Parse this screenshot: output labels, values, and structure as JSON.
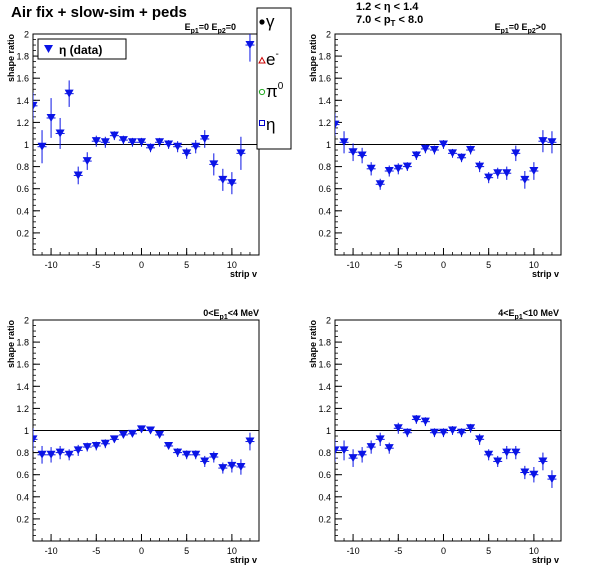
{
  "header": {
    "title": "Air fix + slow-sim + peds",
    "eta_range": "1.2 < η < 1.4",
    "pt_prefix": "7.0 < p",
    "pt_sub": "T",
    "pt_suffix": " < 8.0"
  },
  "legend": {
    "entry": "η (data)",
    "particles": [
      "γ",
      "e",
      "-",
      "π",
      "0",
      "η"
    ],
    "colors": {
      "gamma": "#000000",
      "electron": "#cc0000",
      "pi0": "#22aa22",
      "eta": "#0000cc"
    }
  },
  "colors": {
    "marker": "#0a14e6",
    "axis": "#000000",
    "reference_line": "#000000"
  },
  "chart_data": [
    {
      "type": "scatter",
      "panel_label": "E_p1=0 E_p2=0",
      "label_parts": [
        "E",
        "p1",
        "=0 E",
        "p2",
        "=0"
      ],
      "xlabel": "strip v",
      "ylabel": "shape ratio",
      "xlim": [
        -12,
        13
      ],
      "ylim": [
        0,
        2
      ],
      "x_ticks": [
        -10,
        -5,
        0,
        5,
        10
      ],
      "y_ticks": [
        0.2,
        0.4,
        0.6,
        0.8,
        1,
        1.2,
        1.4,
        1.6,
        1.8,
        2
      ],
      "reference_line": 1,
      "series": [
        {
          "name": "η (data)",
          "x": [
            -12,
            -11,
            -10,
            -9,
            -8,
            -7,
            -6,
            -5,
            -4,
            -3,
            -2,
            -1,
            0,
            1,
            2,
            3,
            4,
            5,
            6,
            7,
            8,
            9,
            10,
            11,
            12
          ],
          "y": [
            1.35,
            0.98,
            1.24,
            1.1,
            1.46,
            0.72,
            0.85,
            1.03,
            1.02,
            1.08,
            1.04,
            1.02,
            1.02,
            0.97,
            1.02,
            1.0,
            0.98,
            0.92,
            0.98,
            1.05,
            0.82,
            0.68,
            0.65,
            0.92,
            1.9
          ],
          "yerr": [
            0.12,
            0.15,
            0.18,
            0.14,
            0.12,
            0.08,
            0.08,
            0.05,
            0.05,
            0.04,
            0.04,
            0.04,
            0.04,
            0.04,
            0.04,
            0.04,
            0.05,
            0.05,
            0.06,
            0.08,
            0.1,
            0.1,
            0.1,
            0.15,
            0.15
          ]
        }
      ]
    },
    {
      "type": "scatter",
      "panel_label": "E_p1=0 E_p2>0",
      "label_parts": [
        "E",
        "p1",
        "=0 E",
        "p2",
        ">0"
      ],
      "xlabel": "strip v",
      "ylabel": "shape ratio",
      "xlim": [
        -12,
        13
      ],
      "ylim": [
        0,
        2
      ],
      "x_ticks": [
        -10,
        -5,
        0,
        5,
        10
      ],
      "y_ticks": [
        0.2,
        0.4,
        0.6,
        0.8,
        1,
        1.2,
        1.4,
        1.6,
        1.8,
        2
      ],
      "reference_line": 1,
      "series": [
        {
          "name": "η (data)",
          "x": [
            -12,
            -11,
            -10,
            -9,
            -8,
            -7,
            -6,
            -5,
            -4,
            -3,
            -2,
            -1,
            0,
            1,
            2,
            3,
            4,
            5,
            6,
            7,
            8,
            9,
            10,
            11,
            12
          ],
          "y": [
            1.18,
            1.02,
            0.93,
            0.9,
            0.78,
            0.64,
            0.76,
            0.78,
            0.8,
            0.9,
            0.96,
            0.95,
            1.0,
            0.92,
            0.88,
            0.95,
            0.8,
            0.7,
            0.74,
            0.74,
            0.92,
            0.68,
            0.76,
            1.03,
            1.02
          ],
          "yerr": [
            0.1,
            0.1,
            0.08,
            0.07,
            0.06,
            0.05,
            0.05,
            0.05,
            0.04,
            0.04,
            0.04,
            0.04,
            0.04,
            0.04,
            0.04,
            0.04,
            0.05,
            0.05,
            0.05,
            0.06,
            0.07,
            0.08,
            0.08,
            0.1,
            0.1
          ]
        }
      ]
    },
    {
      "type": "scatter",
      "panel_label": "0<E_p1<4 MeV",
      "label_parts": [
        "0<E",
        "p1",
        "<4 MeV"
      ],
      "xlabel": "strip v",
      "ylabel": "shape ratio",
      "xlim": [
        -12,
        13
      ],
      "ylim": [
        0,
        2
      ],
      "x_ticks": [
        -10,
        -5,
        0,
        5,
        10
      ],
      "y_ticks": [
        0.2,
        0.4,
        0.6,
        0.8,
        1,
        1.2,
        1.4,
        1.6,
        1.8,
        2
      ],
      "reference_line": 1,
      "series": [
        {
          "name": "η (data)",
          "x": [
            -12,
            -11,
            -10,
            -9,
            -8,
            -7,
            -6,
            -5,
            -4,
            -3,
            -2,
            -1,
            0,
            1,
            2,
            3,
            4,
            5,
            6,
            7,
            8,
            9,
            10,
            11,
            12
          ],
          "y": [
            0.92,
            0.78,
            0.78,
            0.8,
            0.78,
            0.82,
            0.85,
            0.86,
            0.88,
            0.92,
            0.96,
            0.97,
            1.01,
            1.0,
            0.96,
            0.86,
            0.8,
            0.78,
            0.78,
            0.72,
            0.76,
            0.66,
            0.68,
            0.67,
            0.9
          ],
          "yerr": [
            0.1,
            0.08,
            0.07,
            0.06,
            0.05,
            0.05,
            0.04,
            0.04,
            0.04,
            0.03,
            0.03,
            0.03,
            0.03,
            0.03,
            0.03,
            0.03,
            0.04,
            0.04,
            0.04,
            0.05,
            0.05,
            0.05,
            0.06,
            0.07,
            0.08
          ]
        }
      ]
    },
    {
      "type": "scatter",
      "panel_label": "4<E_p1<10 MeV",
      "label_parts": [
        "4<E",
        "p1",
        "<10 MeV"
      ],
      "xlabel": "strip v",
      "ylabel": "shape ratio",
      "xlim": [
        -12,
        13
      ],
      "ylim": [
        0,
        2
      ],
      "x_ticks": [
        -10,
        -5,
        0,
        5,
        10
      ],
      "y_ticks": [
        0.2,
        0.4,
        0.6,
        0.8,
        1,
        1.2,
        1.4,
        1.6,
        1.8,
        2
      ],
      "reference_line": 1,
      "series": [
        {
          "name": "η (data)",
          "x": [
            -12,
            -11,
            -10,
            -9,
            -8,
            -7,
            -6,
            -5,
            -4,
            -3,
            -2,
            -1,
            0,
            1,
            2,
            3,
            4,
            5,
            6,
            7,
            8,
            9,
            10,
            11,
            12
          ],
          "y": [
            0.82,
            0.82,
            0.75,
            0.78,
            0.85,
            0.92,
            0.84,
            1.02,
            0.98,
            1.1,
            1.08,
            0.98,
            0.98,
            1.0,
            0.98,
            1.02,
            0.92,
            0.78,
            0.72,
            0.8,
            0.8,
            0.62,
            0.6,
            0.72,
            0.56
          ],
          "yerr": [
            0.1,
            0.09,
            0.08,
            0.07,
            0.06,
            0.06,
            0.05,
            0.05,
            0.04,
            0.04,
            0.04,
            0.04,
            0.04,
            0.04,
            0.04,
            0.04,
            0.05,
            0.05,
            0.05,
            0.06,
            0.06,
            0.06,
            0.07,
            0.08,
            0.08
          ]
        }
      ]
    }
  ]
}
